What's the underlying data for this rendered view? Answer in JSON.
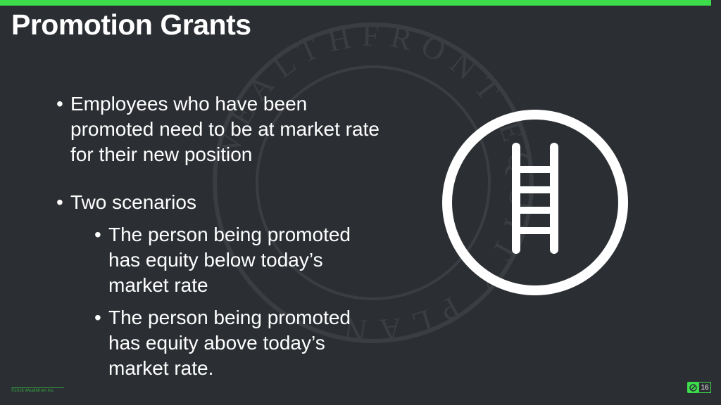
{
  "slide": {
    "title": "Promotion Grants",
    "bullets": [
      {
        "text": "Employees who have been promoted need to be at market rate for their new position"
      },
      {
        "text": "Two scenarios",
        "sub": [
          "The person being promoted has equity below today’s market rate",
          "The person being promoted has equity above today’s market rate."
        ]
      }
    ],
    "icon": "ladder-icon"
  },
  "watermark": {
    "text": "WEALTHFRONT EQUITY PLAN"
  },
  "footer": {
    "copyright": "©2016 Wealthfront Inc.",
    "page_number": "16"
  },
  "colors": {
    "background": "#2b2e33",
    "accent": "#3ddc4c",
    "text": "#ffffff"
  }
}
